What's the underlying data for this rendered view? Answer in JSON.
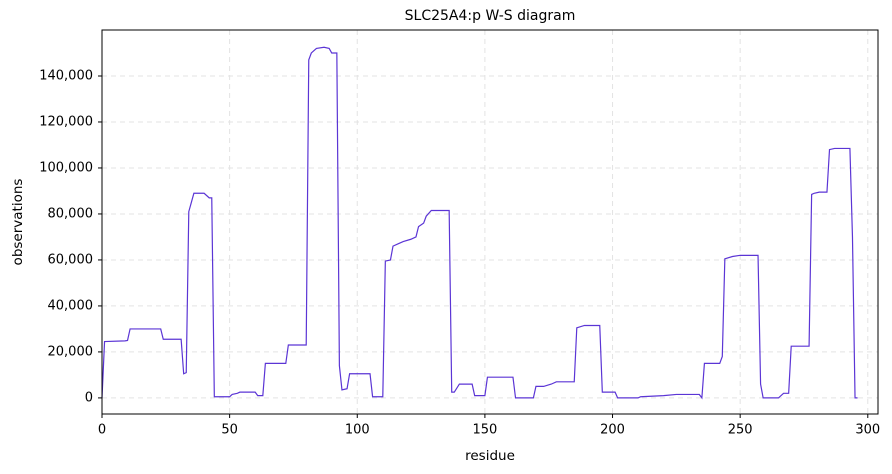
{
  "chart_data": {
    "type": "line",
    "title": "SLC25A4:p W-S diagram",
    "x_label": "residue",
    "y_label": "observations",
    "series": [
      {
        "name": "SLC25A4:p",
        "color": "#5b35d5",
        "x": [
          0,
          1,
          9,
          10,
          11,
          23,
          24,
          31,
          32,
          33,
          34,
          35,
          36,
          40,
          42,
          43,
          44,
          50,
          51,
          53,
          54,
          60,
          61,
          63,
          64,
          72,
          73,
          80,
          81,
          82,
          84,
          87,
          89,
          90,
          92,
          93,
          94,
          96,
          97,
          105,
          106,
          110,
          111,
          113,
          114,
          116,
          118,
          121,
          123,
          124,
          126,
          127,
          129,
          136,
          137,
          138,
          140,
          145,
          146,
          150,
          151,
          161,
          162,
          169,
          170,
          173,
          176,
          178,
          185,
          186,
          189,
          195,
          196,
          201,
          202,
          210,
          211,
          220,
          225,
          234,
          235,
          236,
          242,
          243,
          244,
          247,
          250,
          257,
          258,
          259,
          265,
          267,
          269,
          270,
          277,
          278,
          279,
          281,
          284,
          285,
          287,
          293,
          294,
          295,
          296
        ],
        "values": [
          0,
          24500,
          24800,
          25000,
          30000,
          30000,
          25500,
          25500,
          10500,
          11000,
          81000,
          85000,
          89000,
          89000,
          87000,
          87000,
          500,
          500,
          1500,
          2000,
          2500,
          2500,
          1000,
          1000,
          15000,
          15000,
          23000,
          23000,
          147000,
          150000,
          152000,
          152500,
          152000,
          150000,
          150000,
          14000,
          3500,
          4000,
          10500,
          10500,
          500,
          500,
          59500,
          60000,
          66000,
          67000,
          68000,
          69000,
          70000,
          74500,
          76000,
          79000,
          81500,
          81500,
          2500,
          2500,
          6000,
          6000,
          1000,
          1000,
          9000,
          9000,
          0,
          0,
          5000,
          5000,
          6000,
          7000,
          7000,
          30500,
          31500,
          31500,
          2500,
          2500,
          0,
          0,
          500,
          1000,
          1500,
          1500,
          0,
          15000,
          15000,
          18000,
          60500,
          61500,
          62000,
          62000,
          6000,
          0,
          0,
          2000,
          2000,
          22500,
          22500,
          88500,
          89000,
          89500,
          89500,
          108000,
          108500,
          108500,
          70000,
          0,
          0
        ]
      }
    ],
    "xlim": [
      0,
      304
    ],
    "ylim": [
      -7000,
      160000
    ],
    "xticks": [
      0,
      50,
      100,
      150,
      200,
      250,
      300
    ],
    "yticks": [
      0,
      {
        "value": 20000,
        "label": "20,000"
      },
      {
        "value": 40000,
        "label": "40,000"
      },
      {
        "value": 60000,
        "label": "60,000"
      },
      {
        "value": 80000,
        "label": "80,000"
      },
      {
        "value": 100000,
        "label": "100,000"
      },
      {
        "value": 120000,
        "label": "120,000"
      },
      {
        "value": 140000,
        "label": "140,000"
      }
    ],
    "grid": true
  }
}
